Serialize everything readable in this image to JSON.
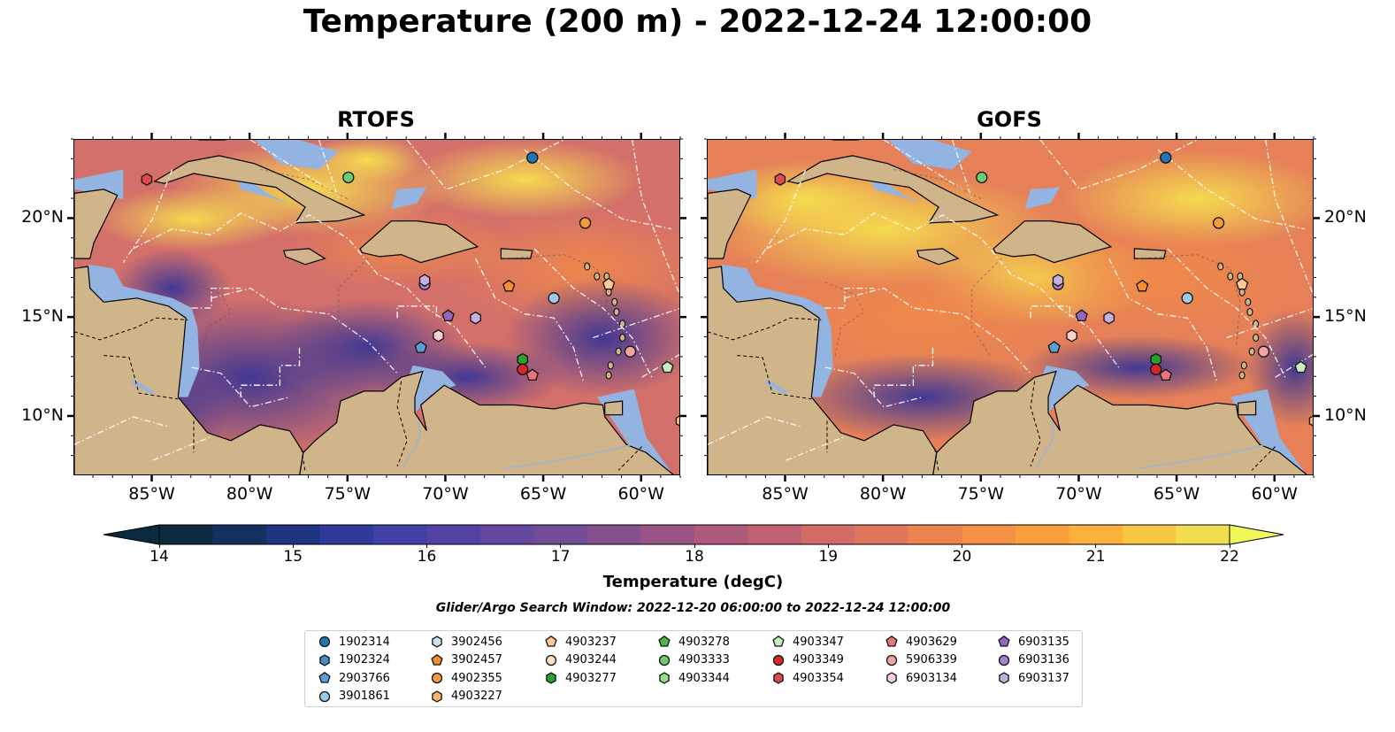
{
  "title": "Temperature (200 m) - 2022-12-24 12:00:00",
  "panels": [
    {
      "title": "RTOFS",
      "theme": "rtofs"
    },
    {
      "title": "GOFS",
      "theme": "gofs"
    }
  ],
  "lon_ticks": [
    "85°W",
    "80°W",
    "75°W",
    "70°W",
    "65°W",
    "60°W"
  ],
  "lat_ticks": [
    "20°N",
    "15°N",
    "10°N"
  ],
  "map_extent": {
    "lon": [
      -89,
      -58
    ],
    "lat": [
      7,
      24
    ]
  },
  "colorbar": {
    "min": 14,
    "max": 22,
    "step": 0.5,
    "ticks": [
      "14",
      "15",
      "16",
      "17",
      "18",
      "19",
      "20",
      "21",
      "22"
    ],
    "label": "Temperature (degC)",
    "colors": [
      "#0b2a3e",
      "#13305f",
      "#1f3580",
      "#2f3a99",
      "#423fa6",
      "#5443a3",
      "#64479e",
      "#744b96",
      "#864f8e",
      "#995485",
      "#ad5a7c",
      "#c06272",
      "#d26c67",
      "#e0775b",
      "#ec844e",
      "#f49144",
      "#f9a03c",
      "#fbb13c",
      "#f7c643",
      "#f1dd50"
    ]
  },
  "search_window": "Glider/Argo Search Window: 2022-12-20 06:00:00 to 2022-12-24 12:00:00",
  "legend": {
    "entries": [
      {
        "id": "1902314",
        "marker": "circle",
        "color": "#1f77b4"
      },
      {
        "id": "1902324",
        "marker": "hexagon",
        "color": "#4a8bc9"
      },
      {
        "id": "2903766",
        "marker": "pentagon",
        "color": "#5aa0d8"
      },
      {
        "id": "3901861",
        "marker": "circle",
        "color": "#9ecae9"
      },
      {
        "id": "3902456",
        "marker": "hexagon",
        "color": "#c6e2f5"
      },
      {
        "id": "3902457",
        "marker": "pentagon",
        "color": "#f28e2b"
      },
      {
        "id": "4902355",
        "marker": "circle",
        "color": "#f59a3c"
      },
      {
        "id": "4903227",
        "marker": "hexagon",
        "color": "#fdb36b"
      },
      {
        "id": "4903237",
        "marker": "pentagon",
        "color": "#fdc894"
      },
      {
        "id": "4903244",
        "marker": "circle",
        "color": "#fde0c5"
      },
      {
        "id": "4903277",
        "marker": "hexagon",
        "color": "#2ca02c"
      },
      {
        "id": "4903278",
        "marker": "pentagon",
        "color": "#4cb84c"
      },
      {
        "id": "4903333",
        "marker": "circle",
        "color": "#6ccb6c"
      },
      {
        "id": "4903344",
        "marker": "hexagon",
        "color": "#98df8a"
      },
      {
        "id": "4903347",
        "marker": "pentagon",
        "color": "#c7f0c0"
      },
      {
        "id": "4903349",
        "marker": "circle",
        "color": "#d62728"
      },
      {
        "id": "4903354",
        "marker": "hexagon",
        "color": "#e04a4a"
      },
      {
        "id": "4903629",
        "marker": "pentagon",
        "color": "#e8757a"
      },
      {
        "id": "5906339",
        "marker": "circle",
        "color": "#f4a3a3"
      },
      {
        "id": "6903134",
        "marker": "hexagon",
        "color": "#fbd0d0"
      },
      {
        "id": "6903135",
        "marker": "pentagon",
        "color": "#9467bd"
      },
      {
        "id": "6903136",
        "marker": "circle",
        "color": "#a880cc"
      },
      {
        "id": "6903137",
        "marker": "hexagon",
        "color": "#c5b0e2"
      }
    ]
  },
  "floats": [
    {
      "id": "1902314",
      "lon": -65.6,
      "lat": 23.1
    },
    {
      "id": "4903333",
      "lon": -75.0,
      "lat": 22.1
    },
    {
      "id": "4903354",
      "lon": -85.3,
      "lat": 22.0
    },
    {
      "id": "4902355",
      "lon": -62.9,
      "lat": 19.8
    },
    {
      "id": "6903136",
      "lon": -71.1,
      "lat": 16.7
    },
    {
      "id": "6903137",
      "lon": -71.1,
      "lat": 16.9
    },
    {
      "id": "3902457",
      "lon": -66.8,
      "lat": 16.6
    },
    {
      "id": "3901861",
      "lon": -64.5,
      "lat": 16.0
    },
    {
      "id": "6903135",
      "lon": -69.9,
      "lat": 15.1
    },
    {
      "id": "6903137",
      "lon": -68.5,
      "lat": 15.0
    },
    {
      "id": "6903134",
      "lon": -70.4,
      "lat": 14.1
    },
    {
      "id": "2903766",
      "lon": -71.3,
      "lat": 13.5
    },
    {
      "id": "5906339",
      "lon": -60.6,
      "lat": 13.3
    },
    {
      "id": "4903277",
      "lon": -66.1,
      "lat": 12.9
    },
    {
      "id": "4903349",
      "lon": -66.1,
      "lat": 12.4
    },
    {
      "id": "4903629",
      "lon": -65.6,
      "lat": 12.1
    },
    {
      "id": "4903347",
      "lon": -58.7,
      "lat": 12.5
    },
    {
      "id": "4903227",
      "lon": -58.0,
      "lat": 9.8
    },
    {
      "id": "4903237",
      "lon": -61.7,
      "lat": 16.7
    }
  ]
}
